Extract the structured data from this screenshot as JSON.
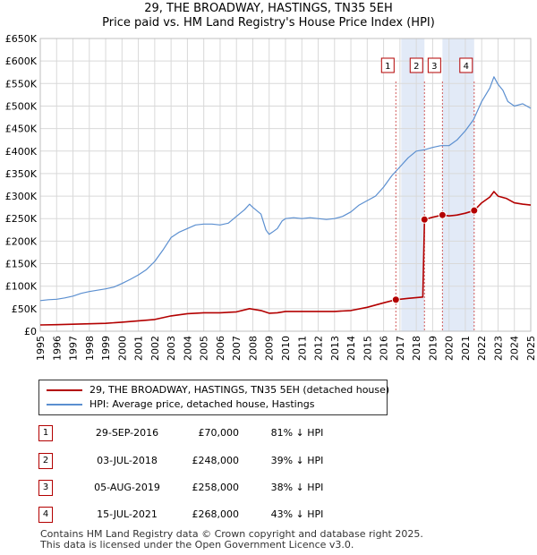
{
  "title_line1": "29, THE BROADWAY, HASTINGS, TN35 5EH",
  "title_line2": "Price paid vs. HM Land Registry's House Price Index (HPI)",
  "chart_data": {
    "type": "line",
    "x_range": [
      1995,
      2025
    ],
    "y_range": [
      0,
      650000
    ],
    "y_ticks": [
      {
        "value": 0,
        "label": "£0"
      },
      {
        "value": 50000,
        "label": "£50K"
      },
      {
        "value": 100000,
        "label": "£100K"
      },
      {
        "value": 150000,
        "label": "£150K"
      },
      {
        "value": 200000,
        "label": "£200K"
      },
      {
        "value": 250000,
        "label": "£250K"
      },
      {
        "value": 300000,
        "label": "£300K"
      },
      {
        "value": 350000,
        "label": "£350K"
      },
      {
        "value": 400000,
        "label": "£400K"
      },
      {
        "value": 450000,
        "label": "£450K"
      },
      {
        "value": 500000,
        "label": "£500K"
      },
      {
        "value": 550000,
        "label": "£550K"
      },
      {
        "value": 600000,
        "label": "£600K"
      },
      {
        "value": 650000,
        "label": "£650K"
      }
    ],
    "x_ticks": [
      "1995",
      "1996",
      "1997",
      "1998",
      "1999",
      "2000",
      "2001",
      "2002",
      "2003",
      "2004",
      "2005",
      "2006",
      "2007",
      "2008",
      "2009",
      "2010",
      "2011",
      "2012",
      "2013",
      "2014",
      "2015",
      "2016",
      "2017",
      "2018",
      "2019",
      "2020",
      "2021",
      "2022",
      "2023",
      "2024",
      "2025"
    ],
    "grid": true,
    "series": [
      {
        "name": "HPI: Average price, detached house, Hastings",
        "color": "#5b8fd0",
        "points": [
          [
            1995.0,
            68000
          ],
          [
            1995.5,
            70000
          ],
          [
            1996.0,
            71000
          ],
          [
            1996.5,
            74000
          ],
          [
            1997.0,
            78000
          ],
          [
            1997.5,
            84000
          ],
          [
            1998.0,
            88000
          ],
          [
            1998.5,
            91000
          ],
          [
            1999.0,
            94000
          ],
          [
            1999.5,
            98000
          ],
          [
            2000.0,
            106000
          ],
          [
            2000.5,
            115000
          ],
          [
            2001.0,
            125000
          ],
          [
            2001.5,
            137000
          ],
          [
            2002.0,
            155000
          ],
          [
            2002.5,
            180000
          ],
          [
            2003.0,
            208000
          ],
          [
            2003.5,
            220000
          ],
          [
            2004.0,
            228000
          ],
          [
            2004.5,
            236000
          ],
          [
            2005.0,
            238000
          ],
          [
            2005.5,
            238000
          ],
          [
            2006.0,
            236000
          ],
          [
            2006.5,
            240000
          ],
          [
            2007.0,
            255000
          ],
          [
            2007.5,
            270000
          ],
          [
            2007.8,
            282000
          ],
          [
            2008.0,
            275000
          ],
          [
            2008.5,
            260000
          ],
          [
            2008.8,
            225000
          ],
          [
            2009.0,
            215000
          ],
          [
            2009.2,
            220000
          ],
          [
            2009.5,
            228000
          ],
          [
            2009.8,
            245000
          ],
          [
            2010.0,
            250000
          ],
          [
            2010.5,
            252000
          ],
          [
            2011.0,
            250000
          ],
          [
            2011.5,
            252000
          ],
          [
            2012.0,
            250000
          ],
          [
            2012.5,
            248000
          ],
          [
            2013.0,
            250000
          ],
          [
            2013.5,
            255000
          ],
          [
            2014.0,
            265000
          ],
          [
            2014.5,
            280000
          ],
          [
            2015.0,
            290000
          ],
          [
            2015.5,
            300000
          ],
          [
            2016.0,
            320000
          ],
          [
            2016.5,
            345000
          ],
          [
            2016.75,
            355000
          ],
          [
            2017.0,
            365000
          ],
          [
            2017.5,
            385000
          ],
          [
            2018.0,
            400000
          ],
          [
            2018.5,
            403000
          ],
          [
            2019.0,
            408000
          ],
          [
            2019.5,
            412000
          ],
          [
            2020.0,
            412000
          ],
          [
            2020.5,
            425000
          ],
          [
            2021.0,
            445000
          ],
          [
            2021.5,
            470000
          ],
          [
            2022.0,
            510000
          ],
          [
            2022.5,
            540000
          ],
          [
            2022.75,
            565000
          ],
          [
            2023.0,
            548000
          ],
          [
            2023.3,
            535000
          ],
          [
            2023.6,
            510000
          ],
          [
            2024.0,
            500000
          ],
          [
            2024.5,
            505000
          ],
          [
            2025.0,
            495000
          ]
        ]
      },
      {
        "name": "29, THE BROADWAY, HASTINGS, TN35 5EH (detached house)",
        "color": "#b30000",
        "points": [
          [
            1995.0,
            14000
          ],
          [
            1996.0,
            14500
          ],
          [
            1997.0,
            15500
          ],
          [
            1998.0,
            16500
          ],
          [
            1999.0,
            17500
          ],
          [
            2000.0,
            20000
          ],
          [
            2001.0,
            23000
          ],
          [
            2002.0,
            26000
          ],
          [
            2003.0,
            34000
          ],
          [
            2004.0,
            39000
          ],
          [
            2005.0,
            41000
          ],
          [
            2006.0,
            41000
          ],
          [
            2007.0,
            43000
          ],
          [
            2007.8,
            50000
          ],
          [
            2008.5,
            46000
          ],
          [
            2009.0,
            40000
          ],
          [
            2009.5,
            41000
          ],
          [
            2010.0,
            44000
          ],
          [
            2011.0,
            44000
          ],
          [
            2012.0,
            44000
          ],
          [
            2013.0,
            44000
          ],
          [
            2014.0,
            46000
          ],
          [
            2015.0,
            53000
          ],
          [
            2016.0,
            63000
          ],
          [
            2016.75,
            70000
          ],
          [
            2017.5,
            73000
          ],
          [
            2018.4,
            76000
          ],
          [
            2018.5,
            248000
          ],
          [
            2019.0,
            253000
          ],
          [
            2019.6,
            258000
          ],
          [
            2020.0,
            256000
          ],
          [
            2020.5,
            258000
          ],
          [
            2021.0,
            262000
          ],
          [
            2021.54,
            268000
          ],
          [
            2022.0,
            285000
          ],
          [
            2022.5,
            298000
          ],
          [
            2022.75,
            310000
          ],
          [
            2023.0,
            300000
          ],
          [
            2023.5,
            295000
          ],
          [
            2024.0,
            285000
          ],
          [
            2024.5,
            282000
          ],
          [
            2025.0,
            280000
          ]
        ]
      }
    ],
    "sales": [
      {
        "marker": "1",
        "x": 2016.75,
        "price": 70000
      },
      {
        "marker": "2",
        "x": 2018.5,
        "price": 248000
      },
      {
        "marker": "3",
        "x": 2019.6,
        "price": 258000
      },
      {
        "marker": "4",
        "x": 2021.54,
        "price": 268000
      }
    ],
    "shaded_spans": [
      [
        2017.08,
        2018.5
      ],
      [
        2019.6,
        2021.54
      ]
    ]
  },
  "legend": {
    "property_label": "29, THE BROADWAY, HASTINGS, TN35 5EH (detached house)",
    "hpi_label": "HPI: Average price, detached house, Hastings",
    "property_color": "#b30000",
    "hpi_color": "#5b8fd0"
  },
  "sales_table": [
    {
      "marker": "1",
      "date": "29-SEP-2016",
      "price": "£70,000",
      "hpi": "81% ↓ HPI"
    },
    {
      "marker": "2",
      "date": "03-JUL-2018",
      "price": "£248,000",
      "hpi": "39% ↓ HPI"
    },
    {
      "marker": "3",
      "date": "05-AUG-2019",
      "price": "£258,000",
      "hpi": "38% ↓ HPI"
    },
    {
      "marker": "4",
      "date": "15-JUL-2021",
      "price": "£268,000",
      "hpi": "43% ↓ HPI"
    }
  ],
  "footer": {
    "line1": "Contains HM Land Registry data © Crown copyright and database right 2025.",
    "line2": "This data is licensed under the Open Government Licence v3.0."
  }
}
